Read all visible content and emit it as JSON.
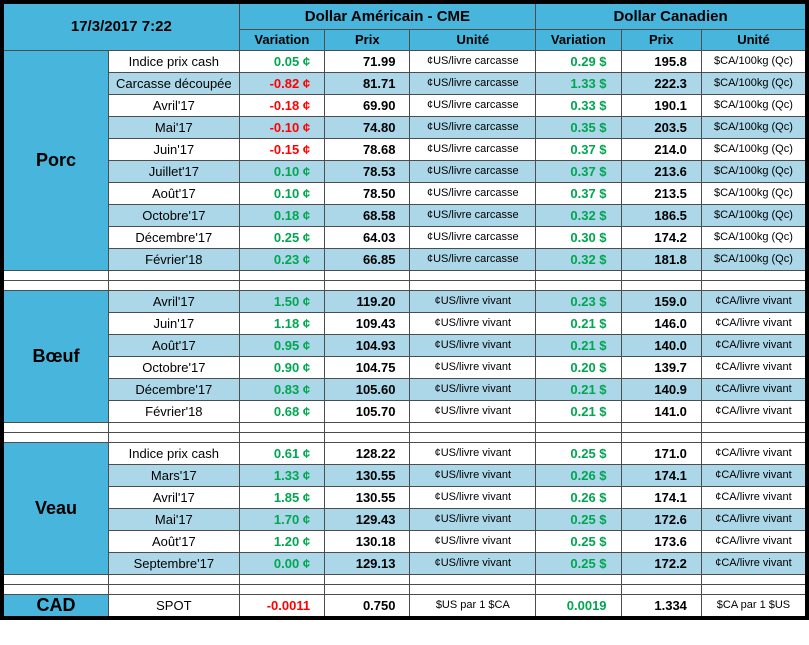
{
  "colors": {
    "header_blue": "#47b5dc",
    "stripe_blue": "#abd7e9",
    "positive_green": "#00a650",
    "negative_red": "#ff0000"
  },
  "header": {
    "timestamp": "17/3/2017 7:22",
    "usd_title": "Dollar Américain - CME",
    "cad_title": "Dollar Canadien",
    "columns": {
      "variation": "Variation",
      "prix": "Prix",
      "unite": "Unité"
    }
  },
  "sections": [
    {
      "label": "Porc",
      "first_row_striped": false,
      "spacer_after": true,
      "rows": [
        {
          "name": "Indice prix cash",
          "us_var": "0.05 ¢",
          "us_var_color": "green",
          "us_prix": "71.99",
          "us_unit": "¢US/livre carcasse",
          "ca_var": "0.29 $",
          "ca_var_color": "green",
          "ca_prix": "195.8",
          "ca_unit": "$CA/100kg (Qc)"
        },
        {
          "name": "Carcasse découpée",
          "us_var": "-0.82 ¢",
          "us_var_color": "red",
          "us_prix": "81.71",
          "us_unit": "¢US/livre carcasse",
          "ca_var": "1.33 $",
          "ca_var_color": "green",
          "ca_prix": "222.3",
          "ca_unit": "$CA/100kg (Qc)"
        },
        {
          "name": "Avril'17",
          "us_var": "-0.18 ¢",
          "us_var_color": "red",
          "us_prix": "69.90",
          "us_unit": "¢US/livre carcasse",
          "ca_var": "0.33 $",
          "ca_var_color": "green",
          "ca_prix": "190.1",
          "ca_unit": "$CA/100kg (Qc)"
        },
        {
          "name": "Mai'17",
          "us_var": "-0.10 ¢",
          "us_var_color": "red",
          "us_prix": "74.80",
          "us_unit": "¢US/livre carcasse",
          "ca_var": "0.35 $",
          "ca_var_color": "green",
          "ca_prix": "203.5",
          "ca_unit": "$CA/100kg (Qc)"
        },
        {
          "name": "Juin'17",
          "us_var": "-0.15 ¢",
          "us_var_color": "red",
          "us_prix": "78.68",
          "us_unit": "¢US/livre carcasse",
          "ca_var": "0.37 $",
          "ca_var_color": "green",
          "ca_prix": "214.0",
          "ca_unit": "$CA/100kg (Qc)"
        },
        {
          "name": "Juillet'17",
          "us_var": "0.10 ¢",
          "us_var_color": "green",
          "us_prix": "78.53",
          "us_unit": "¢US/livre carcasse",
          "ca_var": "0.37 $",
          "ca_var_color": "green",
          "ca_prix": "213.6",
          "ca_unit": "$CA/100kg (Qc)"
        },
        {
          "name": "Août'17",
          "us_var": "0.10 ¢",
          "us_var_color": "green",
          "us_prix": "78.50",
          "us_unit": "¢US/livre carcasse",
          "ca_var": "0.37 $",
          "ca_var_color": "green",
          "ca_prix": "213.5",
          "ca_unit": "$CA/100kg (Qc)"
        },
        {
          "name": "Octobre'17",
          "us_var": "0.18 ¢",
          "us_var_color": "green",
          "us_prix": "68.58",
          "us_unit": "¢US/livre carcasse",
          "ca_var": "0.32 $",
          "ca_var_color": "green",
          "ca_prix": "186.5",
          "ca_unit": "$CA/100kg (Qc)"
        },
        {
          "name": "Décembre'17",
          "us_var": "0.25 ¢",
          "us_var_color": "green",
          "us_prix": "64.03",
          "us_unit": "¢US/livre carcasse",
          "ca_var": "0.30 $",
          "ca_var_color": "green",
          "ca_prix": "174.2",
          "ca_unit": "$CA/100kg (Qc)"
        },
        {
          "name": "Février'18",
          "us_var": "0.23 ¢",
          "us_var_color": "green",
          "us_prix": "66.85",
          "us_unit": "¢US/livre carcasse",
          "ca_var": "0.32 $",
          "ca_var_color": "green",
          "ca_prix": "181.8",
          "ca_unit": "$CA/100kg (Qc)"
        }
      ]
    },
    {
      "label": "Bœuf",
      "first_row_striped": true,
      "spacer_after": true,
      "rows": [
        {
          "name": "Avril'17",
          "us_var": "1.50 ¢",
          "us_var_color": "green",
          "us_prix": "119.20",
          "us_unit": "¢US/livre vivant",
          "ca_var": "0.23 $",
          "ca_var_color": "green",
          "ca_prix": "159.0",
          "ca_unit": "¢CA/livre vivant"
        },
        {
          "name": "Juin'17",
          "us_var": "1.18 ¢",
          "us_var_color": "green",
          "us_prix": "109.43",
          "us_unit": "¢US/livre vivant",
          "ca_var": "0.21 $",
          "ca_var_color": "green",
          "ca_prix": "146.0",
          "ca_unit": "¢CA/livre vivant"
        },
        {
          "name": "Août'17",
          "us_var": "0.95 ¢",
          "us_var_color": "green",
          "us_prix": "104.93",
          "us_unit": "¢US/livre vivant",
          "ca_var": "0.21 $",
          "ca_var_color": "green",
          "ca_prix": "140.0",
          "ca_unit": "¢CA/livre vivant"
        },
        {
          "name": "Octobre'17",
          "us_var": "0.90 ¢",
          "us_var_color": "green",
          "us_prix": "104.75",
          "us_unit": "¢US/livre vivant",
          "ca_var": "0.20 $",
          "ca_var_color": "green",
          "ca_prix": "139.7",
          "ca_unit": "¢CA/livre vivant"
        },
        {
          "name": "Décembre'17",
          "us_var": "0.83 ¢",
          "us_var_color": "green",
          "us_prix": "105.60",
          "us_unit": "¢US/livre vivant",
          "ca_var": "0.21 $",
          "ca_var_color": "green",
          "ca_prix": "140.9",
          "ca_unit": "¢CA/livre vivant"
        },
        {
          "name": "Février'18",
          "us_var": "0.68 ¢",
          "us_var_color": "green",
          "us_prix": "105.70",
          "us_unit": "¢US/livre vivant",
          "ca_var": "0.21 $",
          "ca_var_color": "green",
          "ca_prix": "141.0",
          "ca_unit": "¢CA/livre vivant"
        }
      ]
    },
    {
      "label": "Veau",
      "first_row_striped": false,
      "spacer_after": true,
      "rows": [
        {
          "name": "Indice prix cash",
          "us_var": "0.61 ¢",
          "us_var_color": "green",
          "us_prix": "128.22",
          "us_unit": "¢US/livre vivant",
          "ca_var": "0.25 $",
          "ca_var_color": "green",
          "ca_prix": "171.0",
          "ca_unit": "¢CA/livre vivant"
        },
        {
          "name": "Mars'17",
          "us_var": "1.33 ¢",
          "us_var_color": "green",
          "us_prix": "130.55",
          "us_unit": "¢US/livre vivant",
          "ca_var": "0.26 $",
          "ca_var_color": "green",
          "ca_prix": "174.1",
          "ca_unit": "¢CA/livre vivant"
        },
        {
          "name": "Avril'17",
          "us_var": "1.85 ¢",
          "us_var_color": "green",
          "us_prix": "130.55",
          "us_unit": "¢US/livre vivant",
          "ca_var": "0.26 $",
          "ca_var_color": "green",
          "ca_prix": "174.1",
          "ca_unit": "¢CA/livre vivant"
        },
        {
          "name": "Mai'17",
          "us_var": "1.70 ¢",
          "us_var_color": "green",
          "us_prix": "129.43",
          "us_unit": "¢US/livre vivant",
          "ca_var": "0.25 $",
          "ca_var_color": "green",
          "ca_prix": "172.6",
          "ca_unit": "¢CA/livre vivant"
        },
        {
          "name": "Août'17",
          "us_var": "1.20 ¢",
          "us_var_color": "green",
          "us_prix": "130.18",
          "us_unit": "¢US/livre vivant",
          "ca_var": "0.25 $",
          "ca_var_color": "green",
          "ca_prix": "173.6",
          "ca_unit": "¢CA/livre vivant"
        },
        {
          "name": "Septembre'17",
          "us_var": "0.00 ¢",
          "us_var_color": "green",
          "us_prix": "129.13",
          "us_unit": "¢US/livre vivant",
          "ca_var": "0.25 $",
          "ca_var_color": "green",
          "ca_prix": "172.2",
          "ca_unit": "¢CA/livre vivant"
        }
      ]
    },
    {
      "label": "CAD",
      "first_row_striped": false,
      "spacer_after": false,
      "rows": [
        {
          "name": "SPOT",
          "us_var": "-0.0011",
          "us_var_color": "red",
          "us_prix": "0.750",
          "us_unit": "$US par 1 $CA",
          "ca_var": "0.0019",
          "ca_var_color": "green",
          "ca_prix": "1.334",
          "ca_unit": "$CA par 1 $US"
        }
      ]
    }
  ]
}
